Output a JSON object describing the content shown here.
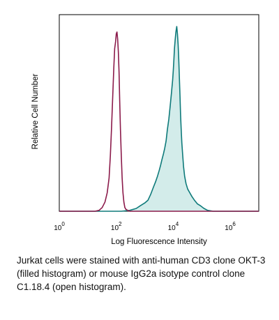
{
  "chart_data": {
    "type": "area",
    "title": "",
    "xlabel": "Log Fluorescence Intensity",
    "ylabel": "Relative Cell Number",
    "x_scale": "log",
    "xlim": [
      1,
      10000000
    ],
    "ylim": [
      0,
      100
    ],
    "grid": false,
    "legend": "none",
    "x_ticks": [
      {
        "base": "10",
        "exp": "0",
        "value": 1
      },
      {
        "base": "10",
        "exp": "2",
        "value": 100
      },
      {
        "base": "10",
        "exp": "4",
        "value": 10000
      },
      {
        "base": "10",
        "exp": "6",
        "value": 1000000
      }
    ],
    "series": [
      {
        "style": "filled",
        "color": "#0e7a7a",
        "fill": "#d3ecea",
        "x": [
          1,
          150,
          300,
          500,
          700,
          1000,
          1300,
          1600,
          2000,
          2400,
          2800,
          3200,
          3600,
          4000,
          4500,
          5000,
          5600,
          6200,
          7000,
          7800,
          8600,
          9500,
          10000,
          10500,
          11000,
          11700,
          12400,
          13200,
          14000,
          14800,
          15600,
          16400,
          17200,
          18000,
          19000,
          20000,
          21500,
          23000,
          25000,
          28000,
          32000,
          38000,
          45000,
          55000,
          70000,
          90000,
          120000,
          160000,
          250000,
          400000,
          10000000
        ],
        "y": [
          0,
          0,
          0.5,
          1.5,
          3,
          4.5,
          6,
          9,
          13,
          16,
          19,
          22,
          25,
          28,
          31,
          34,
          38,
          44,
          50,
          57,
          64,
          71,
          76,
          82,
          88,
          93,
          97,
          100,
          96,
          90,
          82,
          72,
          62,
          52,
          44,
          37,
          30,
          24,
          19,
          15,
          12,
          10,
          8,
          6,
          4,
          3,
          1.5,
          0.5,
          0,
          0,
          0
        ]
      },
      {
        "style": "open",
        "color": "#8b1a4a",
        "x": [
          1,
          18,
          25,
          32,
          40,
          48,
          56,
          62,
          68,
          75,
          82,
          88,
          95,
          100,
          106,
          112,
          118,
          125,
          132,
          140,
          150,
          160,
          172,
          185,
          200,
          220,
          250,
          300,
          10000000
        ],
        "y": [
          0,
          0,
          0.5,
          2,
          5,
          10,
          18,
          30,
          45,
          62,
          78,
          88,
          92,
          96,
          97,
          93,
          86,
          75,
          60,
          44,
          30,
          18,
          10,
          5,
          2,
          1,
          0.5,
          0,
          0
        ]
      }
    ]
  },
  "caption": "Jurkat cells were stained with anti-human CD3 clone OKT-3 (filled histogram) or mouse IgG2a isotype control clone C1.18.4 (open histogram)."
}
